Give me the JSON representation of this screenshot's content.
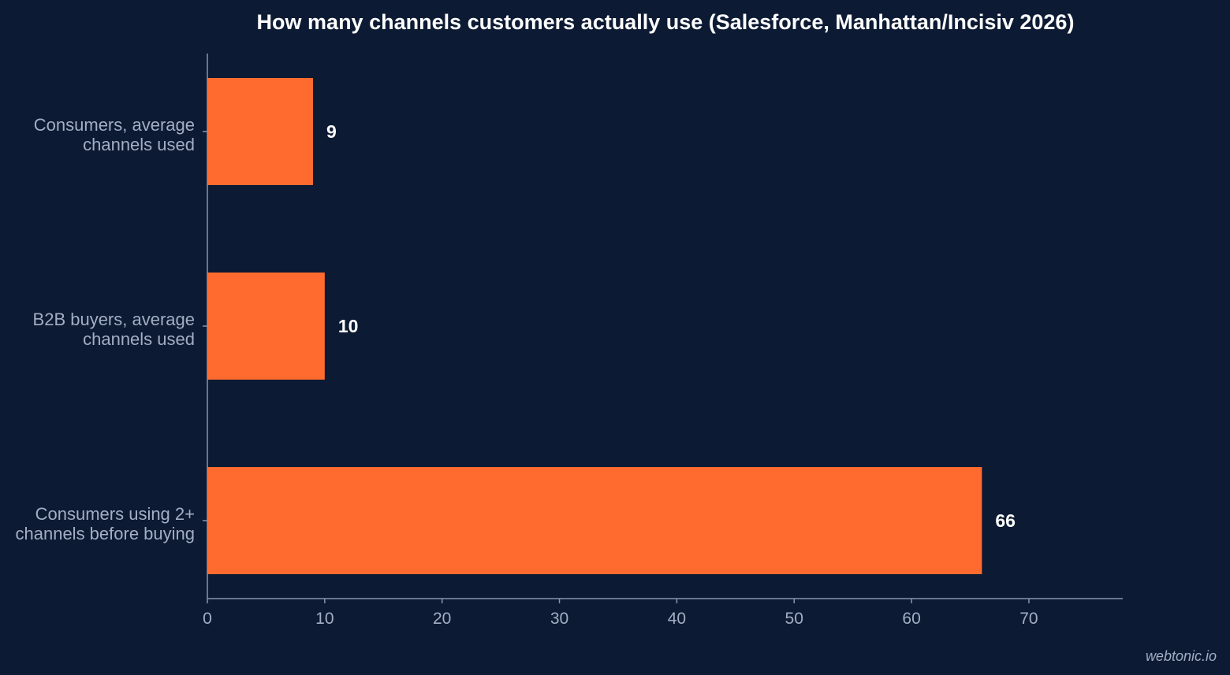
{
  "chart_data": {
    "type": "bar",
    "orientation": "horizontal",
    "title": "How many channels customers actually use (Salesforce, Manhattan/Incisiv 2026)",
    "categories": [
      [
        "Consumers, average",
        "channels used"
      ],
      [
        "B2B buyers, average",
        "channels used"
      ],
      [
        "Consumers using 2+",
        "channels before buying"
      ]
    ],
    "values": [
      9,
      10,
      66
    ],
    "value_labels": [
      "9",
      "10",
      "66"
    ],
    "xlim": [
      0,
      78
    ],
    "xticks": [
      0,
      10,
      20,
      30,
      40,
      50,
      60,
      70
    ],
    "grid": false,
    "legend": "none",
    "colors": {
      "bar": "#ff6b2e",
      "background": "#0c1a33"
    }
  },
  "watermark": "webtonic.io"
}
